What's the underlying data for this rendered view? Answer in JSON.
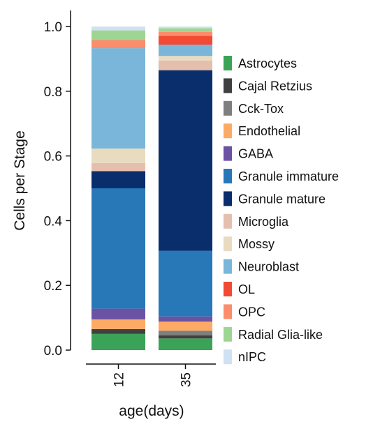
{
  "chart_data": {
    "type": "bar",
    "stacked": true,
    "orientation": "vertical",
    "xlabel": "age(days)",
    "ylabel": "Cells per Stage",
    "ylim": [
      0,
      1.05
    ],
    "yticks": [
      0.0,
      0.2,
      0.4,
      0.6,
      0.8,
      1.0
    ],
    "ytick_labels": [
      "0.0",
      "0.2",
      "0.4",
      "0.6",
      "0.8",
      "1.0"
    ],
    "categories": [
      "12",
      "35"
    ],
    "legend_position": "right",
    "grid": false,
    "series": [
      {
        "name": "Astrocytes",
        "color": "#3aa357",
        "values": [
          0.05,
          0.036
        ]
      },
      {
        "name": "Cajal Retzius",
        "color": "#404040",
        "values": [
          0.015,
          0.01
        ]
      },
      {
        "name": "Cck-Tox",
        "color": "#7f7f7f",
        "values": [
          0.0,
          0.014
        ]
      },
      {
        "name": "Endothelial",
        "color": "#fdaa64",
        "values": [
          0.03,
          0.028
        ]
      },
      {
        "name": "GABA",
        "color": "#6b52a3",
        "values": [
          0.033,
          0.016
        ]
      },
      {
        "name": "Granule immature",
        "color": "#2878b8",
        "values": [
          0.372,
          0.203
        ]
      },
      {
        "name": "Granule mature",
        "color": "#0a2d6b",
        "values": [
          0.053,
          0.558
        ]
      },
      {
        "name": "Microglia",
        "color": "#e4bfae",
        "values": [
          0.025,
          0.03
        ]
      },
      {
        "name": "Mossy",
        "color": "#e8dbbf",
        "values": [
          0.045,
          0.014
        ]
      },
      {
        "name": "Neuroblast",
        "color": "#7ab6d9",
        "values": [
          0.31,
          0.035
        ]
      },
      {
        "name": "OL",
        "color": "#f34a33",
        "values": [
          0.0,
          0.027
        ]
      },
      {
        "name": "OPC",
        "color": "#fc8c6b",
        "values": [
          0.025,
          0.012
        ]
      },
      {
        "name": "Radial Glia-like",
        "color": "#9fd593",
        "values": [
          0.03,
          0.012
        ]
      },
      {
        "name": "nIPC",
        "color": "#cfe1f2",
        "values": [
          0.012,
          0.005
        ]
      }
    ]
  }
}
